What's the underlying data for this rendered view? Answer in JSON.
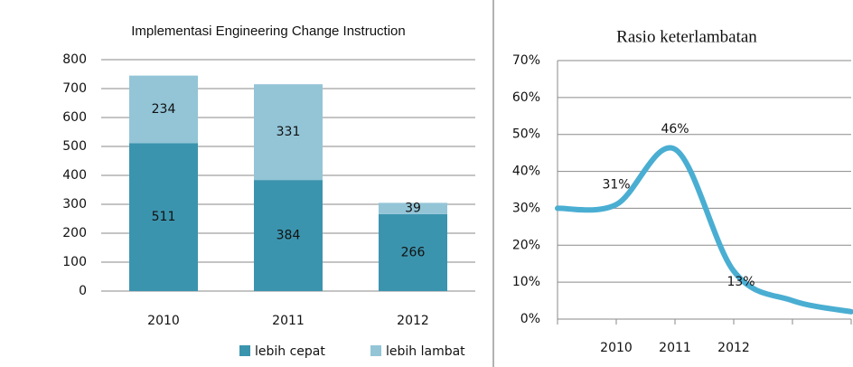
{
  "chart_data": [
    {
      "type": "bar",
      "stacked": true,
      "title": "Implementasi Engineering Change Instruction",
      "categories": [
        "2010",
        "2011",
        "2012"
      ],
      "series": [
        {
          "name": "lebih cepat",
          "color": "#3b94ae",
          "values": [
            511,
            384,
            266
          ]
        },
        {
          "name": "lebih lambat",
          "color": "#93c5d7",
          "values": [
            234,
            331,
            39
          ]
        }
      ],
      "ylim": [
        0,
        800
      ],
      "yticks": [
        0,
        100,
        200,
        300,
        400,
        500,
        600,
        700,
        800
      ],
      "grid": true,
      "legend": "bottom"
    },
    {
      "type": "line",
      "title": "Rasio keterlambatan",
      "categories": [
        null,
        "2010",
        "2011",
        "2012",
        null,
        null
      ],
      "series": [
        {
          "color": "#4aaed2",
          "values": [
            30,
            31,
            46,
            13,
            5,
            2
          ],
          "value_labels": [
            null,
            "31%",
            "46%",
            "13%",
            null,
            null
          ]
        }
      ],
      "ylim": [
        0,
        70
      ],
      "yticks": [
        {
          "value": 0,
          "label": "0%"
        },
        {
          "value": 10,
          "label": "10%"
        },
        {
          "value": 20,
          "label": "20%"
        },
        {
          "value": 30,
          "label": "30%"
        },
        {
          "value": 40,
          "label": "40%"
        },
        {
          "value": 50,
          "label": "50%"
        },
        {
          "value": 60,
          "label": "60%"
        },
        {
          "value": 70,
          "label": "70%"
        }
      ],
      "grid": true
    }
  ]
}
